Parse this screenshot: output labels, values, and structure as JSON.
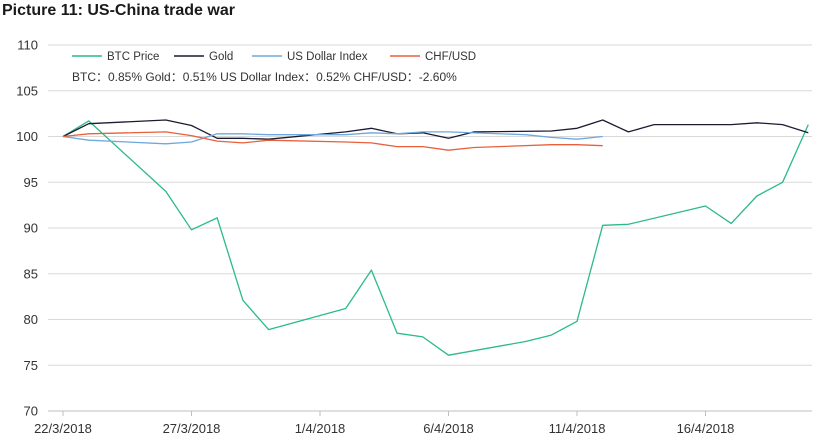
{
  "chart_data": {
    "type": "line",
    "title": "Picture 11: US-China trade war",
    "xlabel": "",
    "ylabel": "",
    "ylim": [
      70,
      110
    ],
    "yticks": [
      70,
      75,
      80,
      85,
      90,
      95,
      100,
      105,
      110
    ],
    "x_tick_labels": [
      "22/3/2018",
      "27/3/2018",
      "1/4/2018",
      "6/4/2018",
      "11/4/2018",
      "16/4/2018"
    ],
    "grid": true,
    "legend_position": "top-left",
    "annotation": "BTC：0.85%    Gold：0.51%    US Dollar Index：0.52%    CHF/USD：-2.60%",
    "series": [
      {
        "name": "BTC Price",
        "color": "#2bba8c",
        "points": [
          {
            "x": 0,
            "y": 100
          },
          {
            "x": 1,
            "y": 101.7
          },
          {
            "x": 4,
            "y": 94
          },
          {
            "x": 5,
            "y": 89.8
          },
          {
            "x": 6,
            "y": 91.1
          },
          {
            "x": 7,
            "y": 82.1
          },
          {
            "x": 8,
            "y": 78.9
          },
          {
            "x": 11,
            "y": 81.2
          },
          {
            "x": 12,
            "y": 85.4
          },
          {
            "x": 13,
            "y": 78.5
          },
          {
            "x": 14,
            "y": 78.1
          },
          {
            "x": 15,
            "y": 76.1
          },
          {
            "x": 18,
            "y": 77.6
          },
          {
            "x": 19,
            "y": 78.3
          },
          {
            "x": 20,
            "y": 79.8
          },
          {
            "x": 21,
            "y": 90.3
          },
          {
            "x": 22,
            "y": 90.4
          },
          {
            "x": 25,
            "y": 92.4
          },
          {
            "x": 26,
            "y": 90.5
          },
          {
            "x": 27,
            "y": 93.5
          },
          {
            "x": 28,
            "y": 95
          },
          {
            "x": 29,
            "y": 101.3
          }
        ]
      },
      {
        "name": "Gold",
        "color": "#1b1b33",
        "points": [
          {
            "x": 0,
            "y": 100
          },
          {
            "x": 1,
            "y": 101.4
          },
          {
            "x": 4,
            "y": 101.8
          },
          {
            "x": 5,
            "y": 101.2
          },
          {
            "x": 6,
            "y": 99.8
          },
          {
            "x": 7,
            "y": 99.8
          },
          {
            "x": 8,
            "y": 99.7
          },
          {
            "x": 11,
            "y": 100.5
          },
          {
            "x": 12,
            "y": 100.9
          },
          {
            "x": 13,
            "y": 100.3
          },
          {
            "x": 14,
            "y": 100.4
          },
          {
            "x": 15,
            "y": 99.8
          },
          {
            "x": 16,
            "y": 100.5
          },
          {
            "x": 19,
            "y": 100.6
          },
          {
            "x": 20,
            "y": 100.9
          },
          {
            "x": 21,
            "y": 101.8
          },
          {
            "x": 22,
            "y": 100.5
          },
          {
            "x": 23,
            "y": 101.3
          },
          {
            "x": 26,
            "y": 101.3
          },
          {
            "x": 27,
            "y": 101.5
          },
          {
            "x": 28,
            "y": 101.3
          },
          {
            "x": 29,
            "y": 100.4
          }
        ]
      },
      {
        "name": "US Dollar Index",
        "color": "#6fa8dc",
        "points": [
          {
            "x": 0,
            "y": 100
          },
          {
            "x": 1,
            "y": 99.6
          },
          {
            "x": 4,
            "y": 99.2
          },
          {
            "x": 5,
            "y": 99.4
          },
          {
            "x": 6,
            "y": 100.3
          },
          {
            "x": 7,
            "y": 100.3
          },
          {
            "x": 8,
            "y": 100.2
          },
          {
            "x": 11,
            "y": 100.2
          },
          {
            "x": 12,
            "y": 100.4
          },
          {
            "x": 13,
            "y": 100.3
          },
          {
            "x": 14,
            "y": 100.5
          },
          {
            "x": 15,
            "y": 100.5
          },
          {
            "x": 18,
            "y": 100.2
          },
          {
            "x": 19,
            "y": 99.9
          },
          {
            "x": 20,
            "y": 99.7
          },
          {
            "x": 21,
            "y": 100
          }
        ]
      },
      {
        "name": "CHF/USD",
        "color": "#e8603c",
        "points": [
          {
            "x": 0,
            "y": 100
          },
          {
            "x": 1,
            "y": 100.3
          },
          {
            "x": 4,
            "y": 100.5
          },
          {
            "x": 5,
            "y": 100.1
          },
          {
            "x": 6,
            "y": 99.5
          },
          {
            "x": 7,
            "y": 99.3
          },
          {
            "x": 8,
            "y": 99.6
          },
          {
            "x": 11,
            "y": 99.4
          },
          {
            "x": 12,
            "y": 99.3
          },
          {
            "x": 13,
            "y": 98.9
          },
          {
            "x": 14,
            "y": 98.9
          },
          {
            "x": 15,
            "y": 98.5
          },
          {
            "x": 16,
            "y": 98.8
          },
          {
            "x": 19,
            "y": 99.1
          },
          {
            "x": 20,
            "y": 99.1
          },
          {
            "x": 21,
            "y": 99
          }
        ]
      }
    ]
  }
}
